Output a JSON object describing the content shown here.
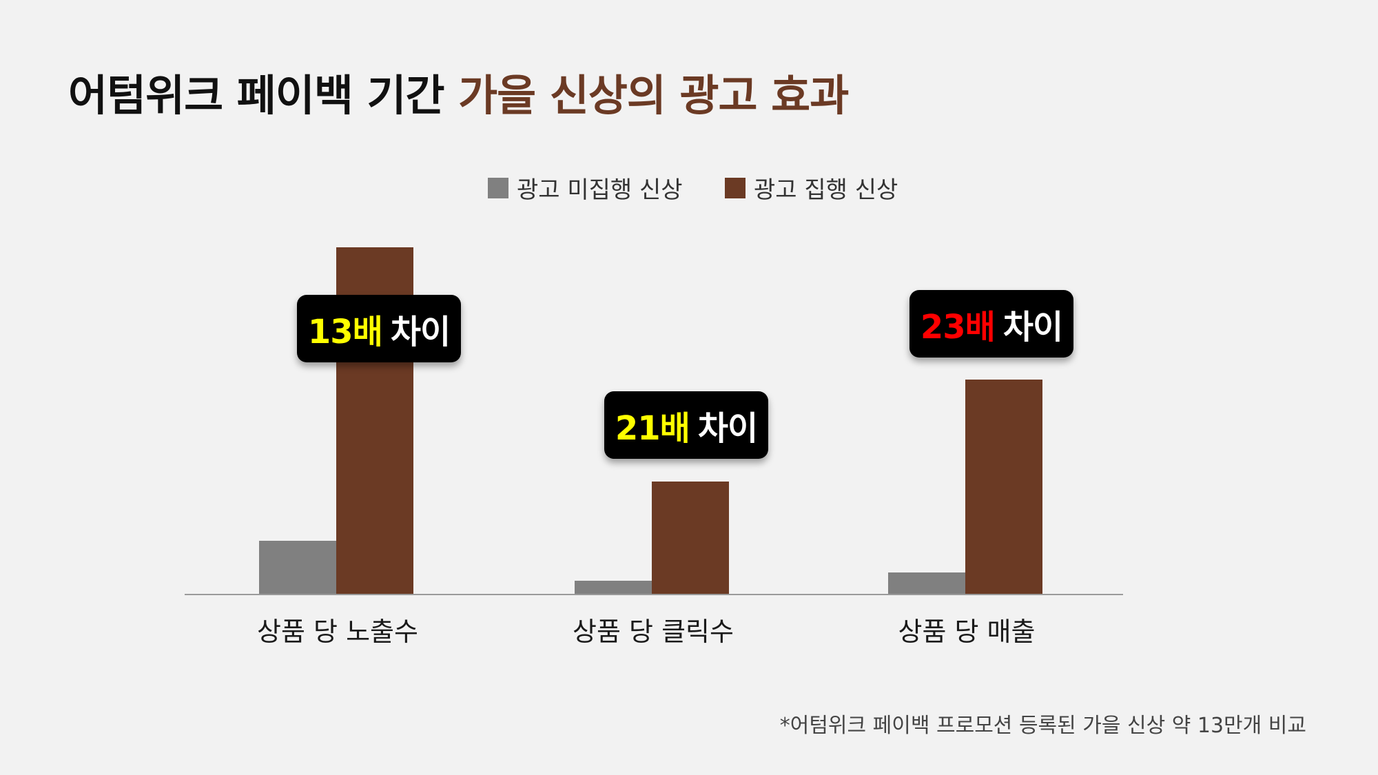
{
  "title": {
    "part1": "어텀위크 페이백 기간 ",
    "part2": "가을 신상의 광고 효과"
  },
  "colors": {
    "no_ad": "#808080",
    "ad": "#6b3a24",
    "axis": "#9a9a9a",
    "highlight_yellow": "#ffff00",
    "highlight_red": "#ff0000"
  },
  "chart_data": {
    "type": "bar",
    "title": "",
    "xlabel": "",
    "ylabel": "",
    "categories": [
      "상품 당 노출수",
      "상품 당 클릭수",
      "상품 당 매출"
    ],
    "series": [
      {
        "name": "광고 미집행 신상",
        "values": [
          1,
          1,
          1
        ]
      },
      {
        "name": "광고 집행 신상",
        "values": [
          13,
          21,
          23
        ]
      }
    ],
    "legend": "top-center",
    "grid": false
  },
  "badges": [
    {
      "ratio": "13배",
      "suffix": "차이",
      "ratio_color": "#ffff00"
    },
    {
      "ratio": "21배",
      "suffix": "차이",
      "ratio_color": "#ffff00"
    },
    {
      "ratio": "23배",
      "suffix": "차이",
      "ratio_color": "#ff0000"
    }
  ],
  "footnote": "*어텀위크 페이백 프로모션 등록된 가을 신상 약 13만개 비교"
}
